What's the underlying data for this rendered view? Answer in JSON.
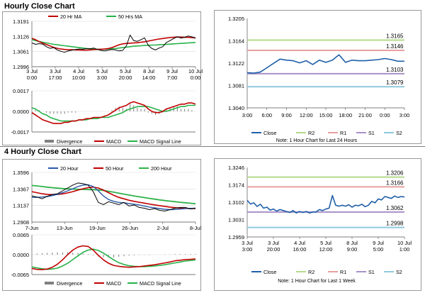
{
  "sections": {
    "hourly_title": "Hourly Close Chart",
    "four_hourly_title": "4 Hourly Close Chart"
  },
  "colors": {
    "close_line": "#1f5fa8",
    "ma_short": "#c00000",
    "ma_long": "#27b24a",
    "ma_200": "#2fb24a",
    "macd": "#c00000",
    "signal": "#27b24a",
    "divergence": "#808080",
    "r2": "#b5d98b",
    "r1": "#e8a0a0",
    "s1": "#a890c8",
    "s2": "#8fc9dc",
    "grid": "#d9d9d9"
  },
  "chart_data": [
    {
      "id": "hourly_price",
      "type": "line",
      "legend": [
        "20 Hr MA",
        "50 Hrs MA"
      ],
      "yticks": [
        "1.3191",
        "1.3126",
        "1.3061",
        "1.2996"
      ],
      "ylim": [
        1.2996,
        1.3191
      ],
      "xticks": [
        "3 Jul\n0:00",
        "3 Jul\n17:00",
        "4 Jul\n10:00",
        "5 Jul\n3:00",
        "5 Jul\n20:00",
        "8 Jul\n14:00",
        "9 Jul\n7:00",
        "10 Jul\n0:00"
      ],
      "series": [
        {
          "name": "Close",
          "values": [
            1.3098,
            1.3092,
            1.3095,
            1.3093,
            1.3082,
            1.3075,
            1.3078,
            1.3068,
            1.3062,
            1.3058,
            1.3064,
            1.3067,
            1.307,
            1.3072,
            1.3071,
            1.3074,
            1.3073,
            1.3076,
            1.307,
            1.3066,
            1.3064,
            1.3067,
            1.307,
            1.3068,
            1.3064,
            1.3066,
            1.3086,
            1.3132,
            1.3108,
            1.3105,
            1.3112,
            1.312,
            1.3088,
            1.3074,
            1.3068,
            1.3076,
            1.3082,
            1.31,
            1.3108,
            1.3117,
            1.3125,
            1.3119,
            1.3122,
            1.3128,
            1.3124,
            1.3118
          ]
        },
        {
          "name": "20 Hr MA",
          "values": [
            1.3118,
            1.3112,
            1.3104,
            1.3097,
            1.3091,
            1.3085,
            1.3079,
            1.3075,
            1.3072,
            1.307,
            1.3069,
            1.3069,
            1.3068,
            1.3068,
            1.3067,
            1.3067,
            1.3068,
            1.3069,
            1.307,
            1.3071,
            1.3072,
            1.3074,
            1.3078,
            1.3084,
            1.309,
            1.3094,
            1.3096,
            1.3097,
            1.3098,
            1.3099,
            1.3101,
            1.3103,
            1.3106,
            1.3109,
            1.3112,
            1.3115,
            1.3117,
            1.3119,
            1.3121,
            1.3122,
            1.3123,
            1.3123,
            1.3122,
            1.3122,
            1.3121,
            1.312
          ]
        },
        {
          "name": "50 Hrs MA",
          "values": [
            1.3112,
            1.3108,
            1.3104,
            1.3101,
            1.3098,
            1.3095,
            1.3092,
            1.309,
            1.3088,
            1.3086,
            1.3084,
            1.3082,
            1.308,
            1.3078,
            1.3076,
            1.3074,
            1.3073,
            1.3072,
            1.3071,
            1.3071,
            1.3071,
            1.3072,
            1.3073,
            1.3074,
            1.3076,
            1.3078,
            1.308,
            1.3082,
            1.3084,
            1.3085,
            1.3086,
            1.3087,
            1.3088,
            1.3089,
            1.3089,
            1.309,
            1.3091,
            1.3092,
            1.3093,
            1.3094,
            1.3095,
            1.3096,
            1.3097,
            1.3098,
            1.3099,
            1.31
          ]
        }
      ]
    },
    {
      "id": "hourly_macd",
      "type": "line",
      "legend": [
        "Divergence",
        "MACD",
        "MACD Signal Line"
      ],
      "yticks": [
        "0.0017",
        "0.0000",
        "-0.0017"
      ],
      "ylim": [
        -0.0017,
        0.0017
      ],
      "series": [
        {
          "name": "Divergence",
          "values": [
            0.0002,
            0.0001,
            0.0001,
            0.0,
            -0.0001,
            -0.0002,
            -0.0002,
            -0.0002,
            -0.0002,
            -0.0002,
            -0.0001,
            -0.0001,
            -0.0001,
            0.0,
            0.0,
            0.0,
            0.0,
            0.0,
            0.0,
            0.0,
            0.0,
            0.0,
            0.0001,
            0.0003,
            0.0004,
            0.0003,
            0.0002,
            0.0006,
            0.0005,
            0.0003,
            0.0002,
            0.0002,
            -0.0001,
            -0.0002,
            -0.0003,
            -0.0002,
            -0.0001,
            0.0002,
            0.0003,
            0.0004,
            0.0004,
            0.0002,
            0.0002,
            0.0002,
            0.0001,
            0.0
          ]
        },
        {
          "name": "MACD",
          "values": [
            -0.0001,
            -0.0003,
            -0.0005,
            -0.0007,
            -0.0008,
            -0.0009,
            -0.001,
            -0.001,
            -0.001,
            -0.0009,
            -0.0009,
            -0.0008,
            -0.0008,
            -0.0007,
            -0.0007,
            -0.0006,
            -0.0006,
            -0.0005,
            -0.0005,
            -0.0005,
            -0.0004,
            -0.0003,
            -0.0001,
            0.0001,
            0.0003,
            0.0004,
            0.0005,
            0.0007,
            0.0008,
            0.0007,
            0.0006,
            0.0005,
            0.0002,
            0.0,
            -0.0001,
            -0.0001,
            0.0,
            0.0002,
            0.0003,
            0.0004,
            0.0005,
            0.0006,
            0.0006,
            0.0007,
            0.0007,
            0.0006
          ]
        },
        {
          "name": "MACD Signal Line",
          "values": [
            0.0003,
            0.0002,
            0.0,
            -0.0002,
            -0.0003,
            -0.0005,
            -0.0006,
            -0.0007,
            -0.0008,
            -0.0008,
            -0.0008,
            -0.0008,
            -0.0008,
            -0.0007,
            -0.0007,
            -0.0007,
            -0.0006,
            -0.0006,
            -0.0006,
            -0.0005,
            -0.0005,
            -0.0005,
            -0.0004,
            -0.0003,
            -0.0002,
            -0.0001,
            0.0001,
            0.0002,
            0.0003,
            0.0004,
            0.0004,
            0.0004,
            0.0004,
            0.0003,
            0.0002,
            0.0001,
            0.0,
            0.0,
            0.0001,
            0.0002,
            0.0003,
            0.0004,
            0.0004,
            0.0005,
            0.0005,
            0.0005
          ]
        }
      ]
    },
    {
      "id": "last24",
      "type": "line",
      "legend": [
        "Close",
        "R2",
        "R1",
        "S1",
        "S2"
      ],
      "note": "Note: 1 Hour Chart for Last 24 Hours",
      "yticks": [
        "1.3205",
        "1.3164",
        "1.3122",
        "1.3081",
        "1.3040"
      ],
      "ylim": [
        1.304,
        1.3205
      ],
      "xticks": [
        "3:00",
        "6:00",
        "9:00",
        "12:00",
        "15:00",
        "18:00",
        "21:00",
        "0:00",
        "3:00"
      ],
      "levels": [
        {
          "name": "R2",
          "value": 1.3165,
          "label": "1.3165"
        },
        {
          "name": "R1",
          "value": 1.3146,
          "label": "1.3146"
        },
        {
          "name": "S1",
          "value": 1.3103,
          "label": "1.3103"
        },
        {
          "name": "S2",
          "value": 1.3079,
          "label": "1.3079"
        }
      ],
      "series": [
        {
          "name": "Close",
          "values": [
            1.3105,
            1.3104,
            1.3106,
            1.3114,
            1.3122,
            1.313,
            1.3128,
            1.3127,
            1.3123,
            1.3127,
            1.312,
            1.3128,
            1.3124,
            1.3128,
            1.3138,
            1.3124,
            1.3128,
            1.3127,
            1.3127,
            1.3128,
            1.3129,
            1.3131,
            1.3129,
            1.3126,
            1.3126
          ]
        }
      ]
    },
    {
      "id": "four_hourly_price",
      "type": "line",
      "legend": [
        "20 Hour",
        "50 Hour",
        "200 Hour"
      ],
      "yticks": [
        "1.3596",
        "1.3367",
        "1.3137",
        "1.2908"
      ],
      "ylim": [
        1.2908,
        1.3596
      ],
      "xticks": [
        "7-Jun",
        "13-Jun",
        "19-Jun",
        "26-Jun",
        "2-Jul",
        "8-Jul"
      ],
      "series": [
        {
          "name": "Close",
          "values": [
            1.327,
            1.3255,
            1.323,
            1.3265,
            1.329,
            1.33,
            1.334,
            1.338,
            1.342,
            1.345,
            1.344,
            1.342,
            1.333,
            1.318,
            1.315,
            1.319,
            1.317,
            1.315,
            1.318,
            1.313,
            1.3145,
            1.311,
            1.31,
            1.308,
            1.3095,
            1.307,
            1.306,
            1.308,
            1.31,
            1.311,
            1.311,
            1.309,
            1.31
          ]
        },
        {
          "name": "20 Hour",
          "values": [
            1.325,
            1.325,
            1.3255,
            1.3262,
            1.3275,
            1.3292,
            1.3315,
            1.334,
            1.337,
            1.34,
            1.342,
            1.3425,
            1.34,
            1.334,
            1.327,
            1.322,
            1.3195,
            1.318,
            1.3175,
            1.3165,
            1.3155,
            1.3145,
            1.313,
            1.3115,
            1.3105,
            1.3095,
            1.3085,
            1.308,
            1.3082,
            1.3088,
            1.3094,
            1.3098,
            1.31
          ]
        },
        {
          "name": "50 Hour",
          "values": [
            1.333,
            1.3315,
            1.33,
            1.329,
            1.3288,
            1.329,
            1.3298,
            1.3312,
            1.333,
            1.335,
            1.337,
            1.3385,
            1.3392,
            1.338,
            1.335,
            1.3315,
            1.328,
            1.325,
            1.323,
            1.321,
            1.3195,
            1.3182,
            1.317,
            1.3158,
            1.3146,
            1.3135,
            1.3125,
            1.3115,
            1.3108,
            1.3102,
            1.3098,
            1.3095,
            1.3095
          ]
        },
        {
          "name": "200 Hour",
          "values": [
            1.3415,
            1.3408,
            1.34,
            1.3392,
            1.3385,
            1.3378,
            1.3372,
            1.3368,
            1.3365,
            1.3362,
            1.336,
            1.3358,
            1.3356,
            1.3352,
            1.3345,
            1.3335,
            1.3322,
            1.3308,
            1.3295,
            1.3282,
            1.327,
            1.3258,
            1.3247,
            1.3236,
            1.3225,
            1.3215,
            1.3206,
            1.3198,
            1.319,
            1.3182,
            1.3175,
            1.3168,
            1.3162
          ]
        }
      ]
    },
    {
      "id": "four_hourly_macd",
      "type": "line",
      "legend": [
        "Divergence",
        "MACD",
        "MACD Signal Line"
      ],
      "yticks": [
        "0.0065",
        "0.0000",
        "-0.0065"
      ],
      "ylim": [
        -0.0065,
        0.0065
      ],
      "series": [
        {
          "name": "Divergence",
          "values": [
            0.0004,
            0.0004,
            0.0005,
            0.0006,
            0.0007,
            0.0008,
            0.0008,
            0.0008,
            0.0007,
            0.0006,
            0.0004,
            0.0002,
            -0.0002,
            -0.0006,
            -0.0009,
            -0.001,
            -0.0009,
            -0.0007,
            -0.0005,
            -0.0003,
            -0.0002,
            -0.0001,
            -0.0001,
            -0.0001,
            0.0,
            0.0,
            0.0001,
            0.0001,
            0.0002,
            0.0002,
            0.0002,
            0.0002,
            0.0002
          ]
        },
        {
          "name": "MACD",
          "values": [
            -0.0045,
            -0.0048,
            -0.0049,
            -0.0047,
            -0.0041,
            -0.0031,
            -0.0017,
            0.0,
            0.0015,
            0.0025,
            0.0029,
            0.0027,
            0.0015,
            -0.0002,
            -0.0017,
            -0.0028,
            -0.0035,
            -0.0038,
            -0.004,
            -0.0041,
            -0.004,
            -0.0039,
            -0.0037,
            -0.0035,
            -0.0033,
            -0.003,
            -0.0027,
            -0.0024,
            -0.002,
            -0.0018,
            -0.0016,
            -0.0015,
            -0.0014
          ]
        },
        {
          "name": "MACD Signal Line",
          "values": [
            -0.004,
            -0.0043,
            -0.0046,
            -0.0048,
            -0.0047,
            -0.0044,
            -0.0037,
            -0.0028,
            -0.0016,
            -0.0004,
            0.0008,
            0.0015,
            0.0018,
            0.0014,
            0.0005,
            -0.0006,
            -0.0017,
            -0.0026,
            -0.0032,
            -0.0036,
            -0.0038,
            -0.0039,
            -0.0039,
            -0.0038,
            -0.0037,
            -0.0035,
            -0.0033,
            -0.003,
            -0.0027,
            -0.0024,
            -0.0021,
            -0.0019,
            -0.0017
          ]
        }
      ]
    },
    {
      "id": "last_week",
      "type": "line",
      "legend": [
        "Close",
        "R2",
        "R1",
        "S1",
        "S2"
      ],
      "note": "Note: 1 Hour Chart for Last 1 Week",
      "yticks": [
        "1.3246",
        "1.3174",
        "1.3102",
        "1.3031",
        "1.2959"
      ],
      "ylim": [
        1.2959,
        1.3246
      ],
      "xticks": [
        "3 Jul\n3:00",
        "3 Jul\n20:00",
        "4 Jul\n16:00",
        "5 Jul\n12:00",
        "8 Jul\n9:00",
        "9 Jul\n5:00",
        "10 Jul\n1:00"
      ],
      "levels": [
        {
          "name": "R2",
          "value": 1.3206,
          "label": "1.3206"
        },
        {
          "name": "R1",
          "value": 1.3166,
          "label": "1.3166"
        },
        {
          "name": "S1",
          "value": 1.3062,
          "label": "1.3062"
        },
        {
          "name": "S2",
          "value": 1.2998,
          "label": "1.2998"
        }
      ],
      "series": [
        {
          "name": "Close",
          "values": [
            1.311,
            1.3095,
            1.31,
            1.3085,
            1.3094,
            1.3078,
            1.3082,
            1.307,
            1.3074,
            1.3066,
            1.3072,
            1.3068,
            1.3064,
            1.306,
            1.3068,
            1.3058,
            1.3064,
            1.306,
            1.3064,
            1.3058,
            1.3062,
            1.3062,
            1.3072,
            1.3068,
            1.3074,
            1.3078,
            1.313,
            1.309,
            1.3086,
            1.309,
            1.3086,
            1.3092,
            1.3082,
            1.309,
            1.3088,
            1.3094,
            1.3084,
            1.309,
            1.3106,
            1.31,
            1.3116,
            1.3112,
            1.3126,
            1.3122,
            1.3118,
            1.3128,
            1.3122,
            1.3126,
            1.3124
          ]
        }
      ]
    }
  ]
}
